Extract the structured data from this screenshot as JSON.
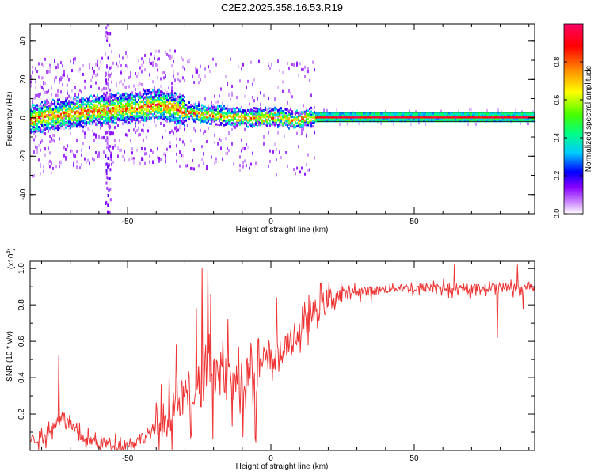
{
  "figure_title": "C2E2.2025.358.16.53.R19",
  "chart_data": [
    {
      "type": "heatmap",
      "panel": "top",
      "title": "C2E2.2025.358.16.53.R19",
      "xlabel": "Height of straight line (km)",
      "ylabel": "Frequency (Hz)",
      "xlim": [
        -84,
        92
      ],
      "ylim": [
        -50,
        49
      ],
      "xticks": [
        -50,
        0,
        50
      ],
      "yticks": [
        -40,
        -20,
        0,
        20,
        40
      ],
      "colorbar": {
        "label": "Normalized spectral amplitude",
        "range": [
          0,
          1
        ],
        "ticks": [
          0.0,
          0.2,
          0.4,
          0.6,
          0.8
        ],
        "tick_labels": [
          "0.0",
          "0.2",
          "0.4",
          "0.6",
          "0.8"
        ],
        "colors": [
          "#ffffff",
          "#cc88ff",
          "#8800ff",
          "#0000ff",
          "#00ccff",
          "#00ff66",
          "#66ff00",
          "#ffff00",
          "#ff8800",
          "#ff0000",
          "#ff0066"
        ]
      },
      "ridge": {
        "x": [
          -84,
          -78,
          -72,
          -66,
          -60,
          -54,
          -48,
          -44,
          -40,
          -36,
          -32,
          -28,
          -24,
          -20,
          -16,
          -12,
          -8,
          -4,
          0,
          4,
          8,
          12,
          16,
          30,
          50,
          70,
          92
        ],
        "frequency": [
          -1,
          1,
          2,
          3,
          4,
          5,
          5,
          6,
          7,
          6,
          4,
          3,
          2,
          1.5,
          1,
          0.5,
          0.3,
          0.2,
          0.5,
          0,
          -1,
          0,
          0.5,
          0.5,
          0.5,
          0.5,
          0.5
        ]
      },
      "noise_band_x": [
        -58,
        -56
      ]
    },
    {
      "type": "line",
      "panel": "bottom",
      "xlabel": "Height of straight line (km)",
      "ylabel": "SNR (10 * v/v)",
      "y_scale_label": "(x10",
      "y_scale_exp": "4",
      "y_scale_close": ")",
      "xlim": [
        -84,
        92
      ],
      "ylim": [
        0,
        1.04
      ],
      "xticks": [
        -50,
        0,
        50
      ],
      "yticks": [
        0.2,
        0.4,
        0.6,
        0.8,
        1.0
      ],
      "ytick_labels": [
        "0.2",
        "0.4",
        "0.6",
        "0.8",
        "1.0"
      ],
      "series": [
        {
          "name": "SNR",
          "color": "#ee3333",
          "x": [
            -84,
            -80,
            -76,
            -74,
            -72,
            -68,
            -64,
            -60,
            -56,
            -52,
            -48,
            -44,
            -40,
            -36,
            -32,
            -28,
            -24,
            -20,
            -16,
            -12,
            -8,
            -4,
            0,
            4,
            8,
            12,
            16,
            20,
            24,
            28,
            32,
            36,
            40,
            45,
            50,
            55,
            60,
            65,
            70,
            75,
            80,
            85,
            88,
            90,
            92
          ],
          "values": [
            0.06,
            0.08,
            0.12,
            0.2,
            0.18,
            0.1,
            0.06,
            0.05,
            0.04,
            0.03,
            0.05,
            0.08,
            0.13,
            0.2,
            0.28,
            0.36,
            0.42,
            0.44,
            0.4,
            0.38,
            0.45,
            0.48,
            0.5,
            0.55,
            0.62,
            0.7,
            0.78,
            0.83,
            0.86,
            0.87,
            0.88,
            0.88,
            0.89,
            0.9,
            0.89,
            0.9,
            0.9,
            0.88,
            0.89,
            0.9,
            0.9,
            0.9,
            0.88,
            0.91,
            0.9
          ]
        }
      ],
      "spikes": [
        {
          "x": -74,
          "y": 0.52
        },
        {
          "x": -33,
          "y": 0.58
        },
        {
          "x": -26,
          "y": 0.78
        },
        {
          "x": -24,
          "y": 1.0
        },
        {
          "x": -22,
          "y": 0.99
        },
        {
          "x": -21,
          "y": 0.86
        },
        {
          "x": -15,
          "y": 0.72
        },
        {
          "x": 2,
          "y": 0.84
        },
        {
          "x": 64,
          "y": 1.02
        },
        {
          "x": 79,
          "y": 0.62
        },
        {
          "x": 86,
          "y": 1.02
        },
        {
          "x": 88,
          "y": 0.78
        }
      ]
    }
  ]
}
